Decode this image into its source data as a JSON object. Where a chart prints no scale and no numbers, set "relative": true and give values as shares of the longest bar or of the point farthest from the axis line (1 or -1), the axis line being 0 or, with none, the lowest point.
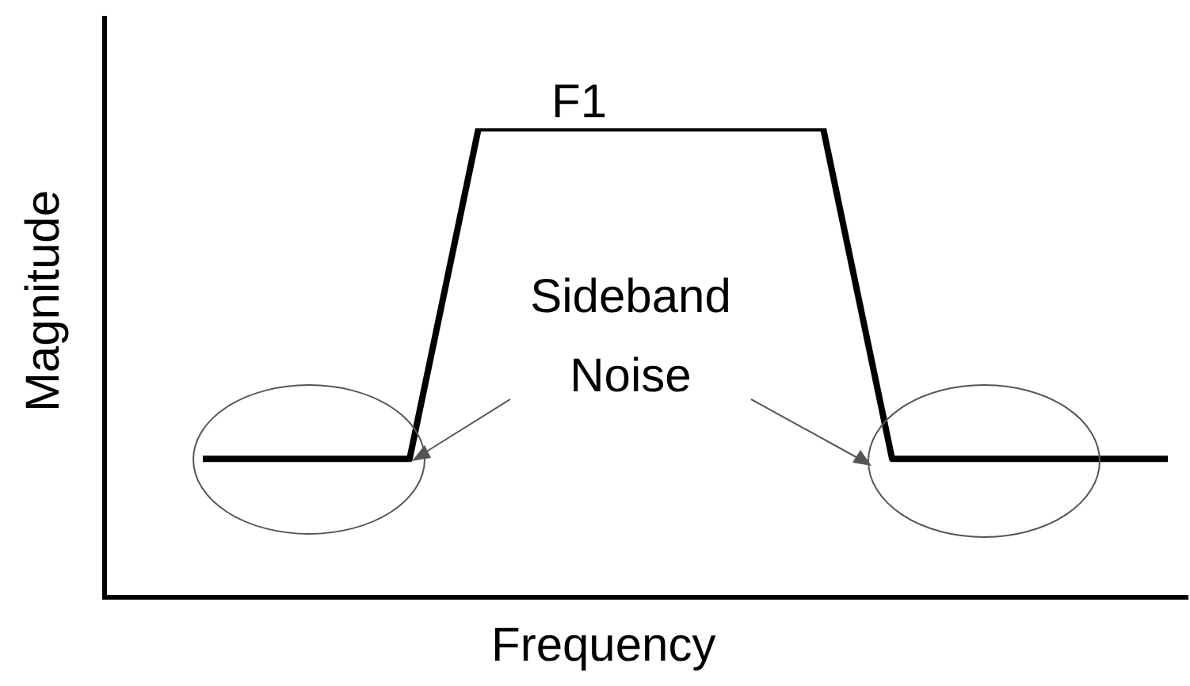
{
  "chart_data": {
    "type": "line",
    "relative": true,
    "xlabel": "Frequency",
    "ylabel": "Magnitude",
    "categories": [
      null,
      null,
      null,
      null,
      null,
      null,
      null,
      null,
      null,
      null,
      null,
      null,
      null,
      null,
      null
    ],
    "series": [
      {
        "color": "#000000",
        "values": [
          0.3,
          0.3,
          0.3,
          0.3,
          1,
          1,
          1,
          1,
          1,
          1,
          0.3,
          0.3,
          0.3,
          0.3,
          0.3
        ]
      }
    ],
    "annotations": [
      "F1",
      "Sideband Noise"
    ],
    "legend": false,
    "marker": "none",
    "line_style": "solid"
  }
}
